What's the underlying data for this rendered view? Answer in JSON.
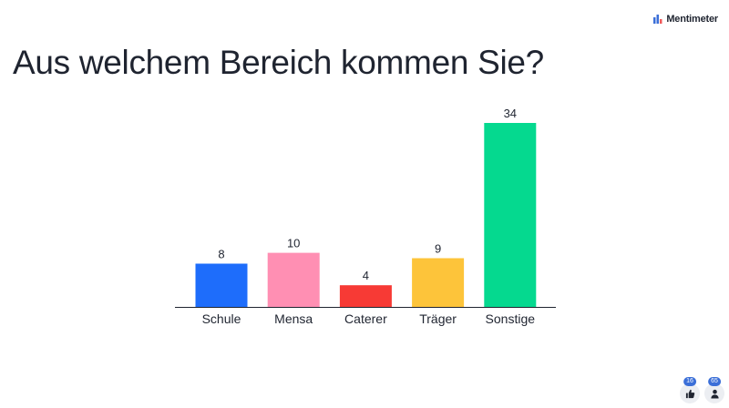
{
  "brand": {
    "name": "Mentimeter"
  },
  "chart_data": {
    "type": "bar",
    "title": "Aus welchem Bereich kommen Sie?",
    "categories": [
      "Schule",
      "Mensa",
      "Caterer",
      "Träger",
      "Sonstige"
    ],
    "values": [
      8,
      10,
      4,
      9,
      34
    ],
    "colors": [
      "#1e6dfb",
      "#ff8fb3",
      "#f73a35",
      "#fdc43a",
      "#05d98f"
    ],
    "data_labels": true,
    "grid": false,
    "legend": "none",
    "ylim": [
      0,
      34
    ]
  },
  "footer": {
    "likes_count": "16",
    "participants_count": "65"
  }
}
